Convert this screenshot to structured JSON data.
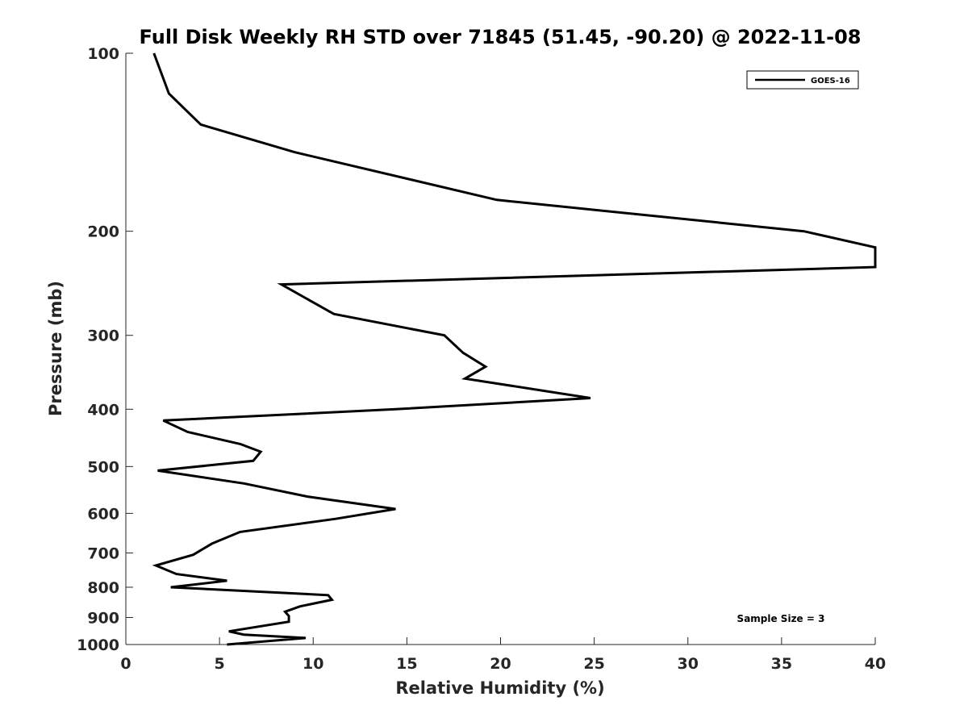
{
  "chart_data": {
    "type": "line",
    "title": "Full Disk Weekly RH STD over 71845 (51.45, -90.20) @ 2022-11-08",
    "xlabel": "Relative Humidity (%)",
    "ylabel": "Pressure (mb)",
    "xlim": [
      0,
      40
    ],
    "ylim": [
      100,
      1000
    ],
    "yscale": "log",
    "y_reversed": true,
    "x_ticks": [
      0,
      5,
      10,
      15,
      20,
      25,
      30,
      35,
      40
    ],
    "y_ticks": [
      100,
      200,
      300,
      400,
      500,
      600,
      700,
      800,
      900,
      1000
    ],
    "grid": false,
    "legend_position": "top-right",
    "annotation": "Sample Size = 3",
    "series": [
      {
        "name": "GOES-16",
        "color": "#000000",
        "x": [
          1.5,
          2.3,
          4.0,
          9.0,
          19.8,
          36.2,
          40.0,
          40.0,
          8.3,
          11.1,
          17.0,
          18.0,
          19.2,
          18.1,
          24.8,
          14.4,
          2.0,
          3.3,
          6.1,
          7.2,
          6.8,
          1.7,
          6.3,
          9.7,
          14.4,
          11.2,
          6.1,
          4.6,
          3.6,
          1.6,
          2.7,
          5.4,
          2.4,
          10.8,
          11.0,
          9.3,
          8.5,
          8.7,
          8.7,
          5.5,
          6.3,
          9.6,
          5.4
        ],
        "y": [
          100,
          117,
          132,
          147,
          177,
          200,
          213,
          230,
          246,
          276,
          300,
          321,
          339,
          355,
          383,
          400,
          418,
          437,
          458,
          472,
          489,
          508,
          534,
          562,
          590,
          613,
          645,
          675,
          705,
          735,
          760,
          780,
          800,
          825,
          840,
          862,
          880,
          895,
          915,
          950,
          962,
          975,
          1000
        ]
      }
    ]
  }
}
